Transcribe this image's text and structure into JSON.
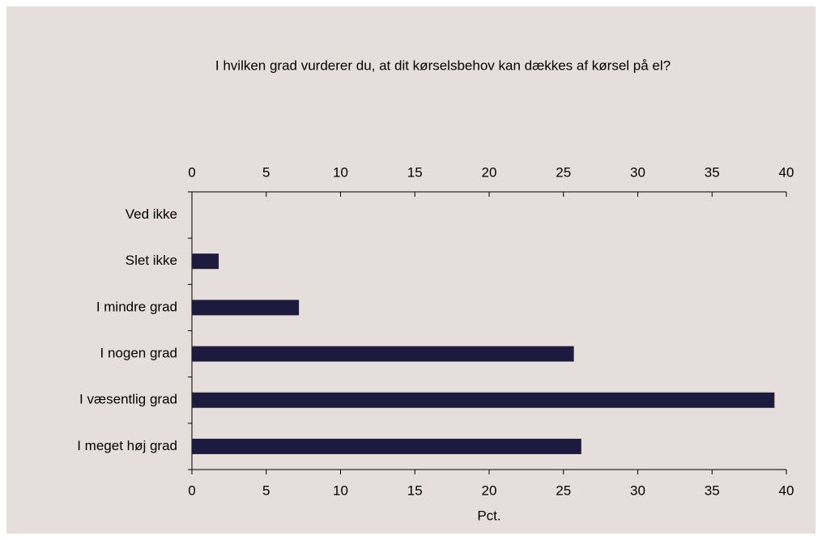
{
  "chart_data": {
    "type": "barh",
    "title": "I hvilken grad vurderer du, at dit kørselsbehov kan dækkes af kørsel på el?",
    "categories": [
      "Ved ikke",
      "Slet ikke",
      "I mindre grad",
      "I nogen grad",
      "I væsentlig grad",
      "I meget høj grad"
    ],
    "values": [
      0,
      1.8,
      7.2,
      25.7,
      39.2,
      26.2
    ],
    "color": "#1c1a3d",
    "xlabel": "Pct.",
    "xlim": [
      0,
      40
    ],
    "xticks": [
      0,
      5,
      10,
      15,
      20,
      25,
      30,
      35,
      40
    ]
  }
}
